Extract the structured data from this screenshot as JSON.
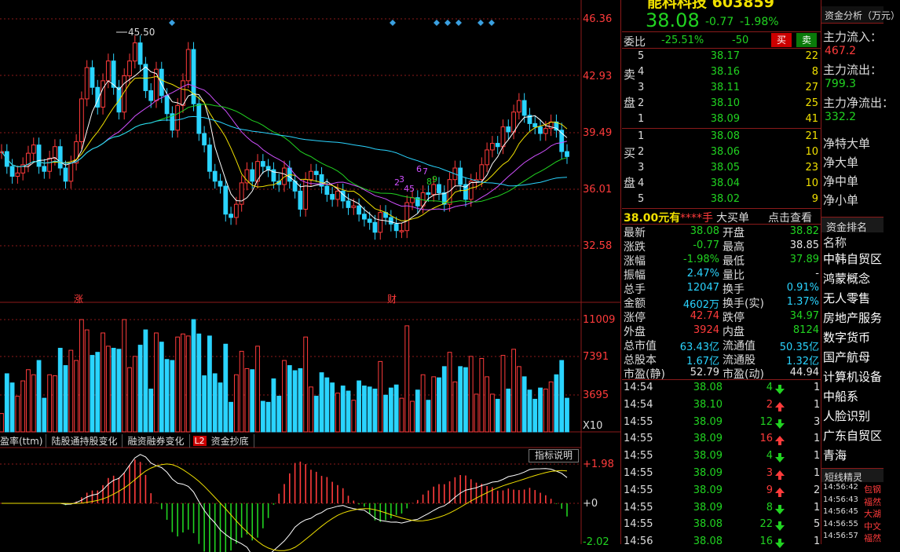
{
  "chart": {
    "price_axis": [
      "46.36",
      "42.93",
      "39.49",
      "36.01",
      "32.58"
    ],
    "price_high_label": "45.50",
    "event_markers": [
      "涨",
      "财"
    ],
    "volume_axis": [
      "11009",
      "7391",
      "3695"
    ],
    "volume_unit": "X10",
    "indicator_axis": [
      "+1.98",
      "+0",
      "-2.02"
    ],
    "indicator_tabs": [
      "盈率(ttm)",
      "陆股通持股变化",
      "融资融券变化",
      "资金抄底"
    ],
    "indicator_tab_badge": "L2",
    "indicator_button": "指标说明",
    "wave_labels": [
      "2",
      "3",
      "4",
      "5",
      "6",
      "7",
      "8",
      "9"
    ]
  },
  "stock": {
    "title": "能科科技 603859",
    "price": "38.08",
    "change": "-0.77",
    "change_pct": "-1.98%"
  },
  "orderbook": {
    "wb_label": "委比",
    "wb_pct": "-25.51%",
    "wb_diff": "-50",
    "buy_btn": "买",
    "sell_btn": "卖",
    "sell_label_1": "卖",
    "sell_label_2": "盘",
    "buy_label_1": "买",
    "buy_label_2": "盘",
    "asks": [
      {
        "lvl": "5",
        "price": "38.17",
        "vol": "22"
      },
      {
        "lvl": "4",
        "price": "38.16",
        "vol": "8"
      },
      {
        "lvl": "3",
        "price": "38.11",
        "vol": "27"
      },
      {
        "lvl": "2",
        "price": "38.10",
        "vol": "25"
      },
      {
        "lvl": "1",
        "price": "38.09",
        "vol": "41"
      }
    ],
    "bids": [
      {
        "lvl": "1",
        "price": "38.08",
        "vol": "21"
      },
      {
        "lvl": "2",
        "price": "38.06",
        "vol": "10"
      },
      {
        "lvl": "3",
        "price": "38.05",
        "vol": "23"
      },
      {
        "lvl": "4",
        "price": "38.04",
        "vol": "10"
      },
      {
        "lvl": "5",
        "price": "38.02",
        "vol": "9"
      }
    ],
    "bigorder_price": "38.00元有",
    "bigorder_qty": "****手",
    "bigorder_label": "大买单",
    "bigorder_link": "点击查看"
  },
  "stats": [
    {
      "l1": "最新",
      "v1": "38.08",
      "c1": "g",
      "l2": "开盘",
      "v2": "38.82",
      "c2": "g"
    },
    {
      "l1": "涨跌",
      "v1": "-0.77",
      "c1": "g",
      "l2": "最高",
      "v2": "38.85",
      "c2": "w"
    },
    {
      "l1": "涨幅",
      "v1": "-1.98%",
      "c1": "g",
      "l2": "最低",
      "v2": "37.89",
      "c2": "g"
    },
    {
      "l1": "振幅",
      "v1": "2.47%",
      "c1": "c",
      "l2": "量比",
      "v2": "-",
      "c2": "w"
    },
    {
      "l1": "总手",
      "v1": "12047",
      "c1": "c",
      "l2": "换手",
      "v2": "0.91%",
      "c2": "c"
    },
    {
      "l1": "金额",
      "v1": "4602万",
      "c1": "c",
      "l2": "换手(实)",
      "v2": "1.37%",
      "c2": "c"
    },
    {
      "l1": "涨停",
      "v1": "42.74",
      "c1": "r",
      "l2": "跌停",
      "v2": "34.97",
      "c2": "g"
    },
    {
      "l1": "外盘",
      "v1": "3924",
      "c1": "r",
      "l2": "内盘",
      "v2": "8124",
      "c2": "g"
    },
    {
      "l1": "总市值",
      "v1": "63.43亿",
      "c1": "c",
      "l2": "流通值",
      "v2": "50.35亿",
      "c2": "c"
    },
    {
      "l1": "总股本",
      "v1": "1.67亿",
      "c1": "c",
      "l2": "流通股",
      "v2": "1.32亿",
      "c2": "c"
    },
    {
      "l1": "市盈(静)",
      "v1": "52.79",
      "c1": "w",
      "l2": "市盈(动)",
      "v2": "44.94",
      "c2": "w"
    }
  ],
  "ticks": [
    {
      "time": "14:54",
      "price": "38.08",
      "vol": "4",
      "dir": "down"
    },
    {
      "time": "14:54",
      "price": "38.10",
      "vol": "2",
      "dir": "up"
    },
    {
      "time": "14:55",
      "price": "38.09",
      "vol": "12",
      "dir": "down"
    },
    {
      "time": "14:55",
      "price": "38.09",
      "vol": "16",
      "dir": "up"
    },
    {
      "time": "14:55",
      "price": "38.09",
      "vol": "4",
      "dir": "down"
    },
    {
      "time": "14:55",
      "price": "38.09",
      "vol": "3",
      "dir": "up"
    },
    {
      "time": "14:55",
      "price": "38.09",
      "vol": "9",
      "dir": "up"
    },
    {
      "time": "14:55",
      "price": "38.09",
      "vol": "8",
      "dir": "down"
    },
    {
      "time": "14:55",
      "price": "38.08",
      "vol": "22",
      "dir": "down"
    },
    {
      "time": "14:56",
      "price": "38.08",
      "vol": "16",
      "dir": "down"
    }
  ],
  "ticks_extra": [
    "1",
    "1",
    "3",
    "1",
    "1",
    "1",
    "2",
    "1",
    "5",
    "1"
  ],
  "fundflow": {
    "header": "资金分析（万元）",
    "items": [
      {
        "label": "主力流入：",
        "value": "467.2",
        "color": "r"
      },
      {
        "label": "主力流出：",
        "value": "799.3",
        "color": "g"
      },
      {
        "label": "主力净流出：",
        "value": "332.2",
        "color": "g"
      }
    ],
    "net": [
      "净特大单",
      "净大单",
      "净中单",
      "净小单"
    ]
  },
  "ranking": {
    "header": "资金排名",
    "col": "名称",
    "items": [
      "中韩自贸区",
      "鸿蒙概念",
      "无人零售",
      "房地产服务",
      "数字货币",
      "国产航母",
      "计算机设备",
      "中船系",
      "人脸识别",
      "广东自贸区",
      "青海"
    ]
  },
  "shortline": {
    "header": "短线精灵",
    "items": [
      {
        "time": "14:56:42",
        "text": "包钢"
      },
      {
        "time": "14:56:43",
        "text": "福然"
      },
      {
        "time": "14:56:45",
        "text": "大湖"
      },
      {
        "time": "14:56:55",
        "text": "中文"
      },
      {
        "time": "14:56:57",
        "text": "福然"
      }
    ]
  },
  "colors": {
    "up": "#ff3b3b",
    "down": "#21d321",
    "grid": "#8b1a1a",
    "cyan": "#2ad4ff"
  }
}
